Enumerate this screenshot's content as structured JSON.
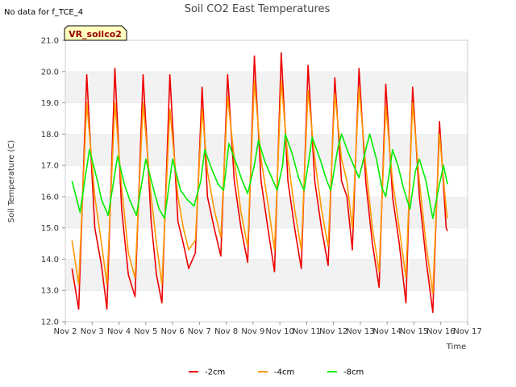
{
  "note": "No data for f_TCE_4",
  "badge": "VR_soilco2",
  "chart_data": {
    "type": "line",
    "title": "Soil CO2 East Temperatures",
    "xlabel": "Time",
    "ylabel": "Soil Temperature (C)",
    "ylim": [
      12.0,
      21.0
    ],
    "yticks": [
      "12.0",
      "13.0",
      "14.0",
      "15.0",
      "16.0",
      "17.0",
      "18.0",
      "19.0",
      "20.0",
      "21.0"
    ],
    "xlim": [
      0,
      15
    ],
    "xticks": [
      "Nov 2",
      "Nov 3",
      "Nov 4",
      "Nov 5",
      "Nov 6",
      "Nov 7",
      "Nov 8",
      "Nov 9",
      "Nov 10",
      "Nov 11",
      "Nov 12",
      "Nov 13",
      "Nov 14",
      "Nov 15",
      "Nov 16",
      "Nov 17"
    ],
    "grid": "horizontal bands",
    "legend_position": "bottom-center",
    "series": [
      {
        "name": "-2cm",
        "color": "#ee0000",
        "points": [
          [
            0.25,
            13.7
          ],
          [
            0.5,
            12.4
          ],
          [
            0.8,
            19.9
          ],
          [
            1.1,
            15.0
          ],
          [
            1.35,
            13.8
          ],
          [
            1.55,
            12.4
          ],
          [
            1.85,
            20.1
          ],
          [
            2.1,
            15.6
          ],
          [
            2.35,
            13.5
          ],
          [
            2.6,
            12.8
          ],
          [
            2.9,
            19.9
          ],
          [
            3.2,
            15.2
          ],
          [
            3.4,
            13.5
          ],
          [
            3.6,
            12.6
          ],
          [
            3.9,
            19.9
          ],
          [
            4.2,
            15.2
          ],
          [
            4.4,
            14.5
          ],
          [
            4.6,
            13.7
          ],
          [
            4.85,
            14.2
          ],
          [
            5.1,
            19.5
          ],
          [
            5.3,
            16.0
          ],
          [
            5.55,
            15.0
          ],
          [
            5.8,
            14.1
          ],
          [
            6.05,
            19.9
          ],
          [
            6.3,
            16.5
          ],
          [
            6.55,
            15.0
          ],
          [
            6.8,
            13.9
          ],
          [
            7.05,
            20.5
          ],
          [
            7.3,
            16.5
          ],
          [
            7.55,
            15.0
          ],
          [
            7.8,
            13.6
          ],
          [
            8.05,
            20.6
          ],
          [
            8.3,
            16.5
          ],
          [
            8.55,
            15.0
          ],
          [
            8.8,
            13.7
          ],
          [
            9.05,
            20.2
          ],
          [
            9.3,
            16.5
          ],
          [
            9.55,
            15.0
          ],
          [
            9.8,
            13.8
          ],
          [
            10.05,
            19.8
          ],
          [
            10.3,
            16.5
          ],
          [
            10.5,
            16.0
          ],
          [
            10.7,
            14.3
          ],
          [
            10.95,
            20.1
          ],
          [
            11.2,
            16.5
          ],
          [
            11.45,
            14.5
          ],
          [
            11.7,
            13.1
          ],
          [
            11.95,
            19.6
          ],
          [
            12.2,
            16.0
          ],
          [
            12.45,
            14.5
          ],
          [
            12.7,
            12.6
          ],
          [
            12.95,
            19.5
          ],
          [
            13.2,
            16.0
          ],
          [
            13.45,
            14.0
          ],
          [
            13.7,
            12.3
          ],
          [
            13.95,
            18.4
          ],
          [
            14.2,
            15.0
          ],
          [
            14.25,
            14.9
          ]
        ]
      },
      {
        "name": "-4cm",
        "color": "#ff9900",
        "points": [
          [
            0.25,
            14.6
          ],
          [
            0.5,
            13.2
          ],
          [
            0.8,
            19.0
          ],
          [
            1.1,
            16.0
          ],
          [
            1.35,
            14.5
          ],
          [
            1.55,
            13.2
          ],
          [
            1.85,
            19.0
          ],
          [
            2.1,
            16.3
          ],
          [
            2.35,
            14.2
          ],
          [
            2.6,
            13.4
          ],
          [
            2.9,
            19.0
          ],
          [
            3.2,
            16.0
          ],
          [
            3.4,
            14.5
          ],
          [
            3.6,
            13.2
          ],
          [
            3.9,
            18.8
          ],
          [
            4.2,
            16.0
          ],
          [
            4.4,
            15.0
          ],
          [
            4.6,
            14.3
          ],
          [
            4.85,
            14.6
          ],
          [
            5.1,
            18.8
          ],
          [
            5.3,
            16.8
          ],
          [
            5.55,
            15.6
          ],
          [
            5.8,
            14.7
          ],
          [
            6.05,
            19.2
          ],
          [
            6.3,
            17.2
          ],
          [
            6.55,
            15.5
          ],
          [
            6.8,
            14.4
          ],
          [
            7.05,
            19.7
          ],
          [
            7.3,
            17.2
          ],
          [
            7.55,
            15.8
          ],
          [
            7.8,
            14.3
          ],
          [
            8.05,
            19.7
          ],
          [
            8.3,
            17.2
          ],
          [
            8.55,
            15.6
          ],
          [
            8.8,
            14.3
          ],
          [
            9.05,
            19.4
          ],
          [
            9.3,
            17.2
          ],
          [
            9.55,
            15.6
          ],
          [
            9.8,
            14.4
          ],
          [
            10.05,
            19.3
          ],
          [
            10.3,
            17.2
          ],
          [
            10.5,
            16.5
          ],
          [
            10.7,
            15.0
          ],
          [
            10.95,
            19.5
          ],
          [
            11.2,
            17.0
          ],
          [
            11.45,
            15.0
          ],
          [
            11.7,
            13.6
          ],
          [
            11.95,
            18.9
          ],
          [
            12.2,
            16.5
          ],
          [
            12.45,
            15.0
          ],
          [
            12.7,
            13.4
          ],
          [
            12.95,
            19.0
          ],
          [
            13.2,
            16.5
          ],
          [
            13.45,
            14.5
          ],
          [
            13.7,
            12.9
          ],
          [
            13.95,
            18.0
          ],
          [
            14.2,
            15.6
          ],
          [
            14.25,
            15.3
          ]
        ]
      },
      {
        "name": "-8cm",
        "color": "#00ee00",
        "points": [
          [
            0.25,
            16.5
          ],
          [
            0.55,
            15.5
          ],
          [
            0.9,
            17.5
          ],
          [
            1.2,
            16.5
          ],
          [
            1.35,
            15.9
          ],
          [
            1.6,
            15.4
          ],
          [
            1.95,
            17.3
          ],
          [
            2.2,
            16.4
          ],
          [
            2.4,
            15.9
          ],
          [
            2.65,
            15.4
          ],
          [
            3.0,
            17.2
          ],
          [
            3.3,
            16.2
          ],
          [
            3.5,
            15.6
          ],
          [
            3.7,
            15.3
          ],
          [
            4.0,
            17.2
          ],
          [
            4.3,
            16.2
          ],
          [
            4.55,
            15.9
          ],
          [
            4.8,
            15.7
          ],
          [
            5.05,
            16.5
          ],
          [
            5.2,
            17.5
          ],
          [
            5.45,
            16.9
          ],
          [
            5.7,
            16.4
          ],
          [
            5.9,
            16.2
          ],
          [
            6.1,
            17.7
          ],
          [
            6.4,
            17.0
          ],
          [
            6.6,
            16.5
          ],
          [
            6.8,
            16.1
          ],
          [
            7.05,
            17.0
          ],
          [
            7.2,
            17.8
          ],
          [
            7.45,
            17.1
          ],
          [
            7.75,
            16.5
          ],
          [
            7.9,
            16.2
          ],
          [
            8.1,
            17.0
          ],
          [
            8.2,
            18.0
          ],
          [
            8.45,
            17.4
          ],
          [
            8.7,
            16.6
          ],
          [
            8.9,
            16.2
          ],
          [
            9.05,
            17.0
          ],
          [
            9.2,
            17.9
          ],
          [
            9.5,
            17.2
          ],
          [
            9.75,
            16.5
          ],
          [
            9.9,
            16.2
          ],
          [
            10.15,
            17.5
          ],
          [
            10.3,
            18.0
          ],
          [
            10.55,
            17.4
          ],
          [
            10.8,
            16.9
          ],
          [
            10.95,
            16.6
          ],
          [
            11.2,
            17.5
          ],
          [
            11.35,
            18.0
          ],
          [
            11.6,
            17.2
          ],
          [
            11.8,
            16.3
          ],
          [
            11.95,
            16.0
          ],
          [
            12.2,
            17.5
          ],
          [
            12.4,
            17.0
          ],
          [
            12.6,
            16.3
          ],
          [
            12.85,
            15.6
          ],
          [
            13.05,
            16.8
          ],
          [
            13.2,
            17.2
          ],
          [
            13.45,
            16.5
          ],
          [
            13.7,
            15.3
          ],
          [
            13.95,
            16.4
          ],
          [
            14.1,
            17.0
          ],
          [
            14.25,
            16.4
          ]
        ]
      }
    ]
  }
}
